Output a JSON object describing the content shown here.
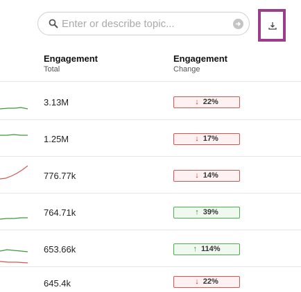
{
  "search": {
    "placeholder": "Enter or describe topic..."
  },
  "columns": {
    "total": {
      "title": "Engagement",
      "subtitle": "Total"
    },
    "change": {
      "title": "Engagement",
      "subtitle": "Change"
    }
  },
  "colors": {
    "up": "#2e8b2e",
    "down": "#d9534f",
    "download_highlight": "#9c3d8c"
  },
  "rows": [
    {
      "total": "3.13M",
      "change": "22%",
      "direction": "down",
      "arrow": "↓",
      "trend": "flat-green"
    },
    {
      "total": "1.25M",
      "change": "17%",
      "direction": "down",
      "arrow": "↓",
      "trend": "flat-green"
    },
    {
      "total": "776.77k",
      "change": "14%",
      "direction": "down",
      "arrow": "↓",
      "trend": "rising-red"
    },
    {
      "total": "764.71k",
      "change": "39%",
      "direction": "up",
      "arrow": "↑",
      "trend": "flat-green"
    },
    {
      "total": "653.66k",
      "change": "114%",
      "direction": "up",
      "arrow": "↑",
      "trend": "flat-green"
    },
    {
      "total": "645.4k",
      "change": "22%",
      "direction": "down",
      "arrow": "↓",
      "trend": "flat-red"
    }
  ]
}
